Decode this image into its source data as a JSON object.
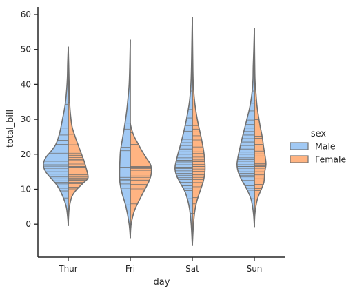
{
  "chart_data": {
    "type": "violin",
    "split": true,
    "inner": "stick",
    "xlabel": "day",
    "ylabel": "total_bill",
    "categories": [
      "Thur",
      "Fri",
      "Sat",
      "Sun"
    ],
    "ylim": [
      -9,
      63
    ],
    "yticks": [
      0,
      10,
      20,
      30,
      40,
      50,
      60
    ],
    "grid": false,
    "legend": {
      "title": "sex",
      "placement": "right",
      "entries": [
        {
          "label": "Male",
          "color": "#a1c9f4"
        },
        {
          "label": "Female",
          "color": "#ffb482"
        }
      ]
    },
    "outline_color": "#707070",
    "series": [
      {
        "name": "Male",
        "color": "#a1c9f4",
        "side": "left",
        "violins": [
          {
            "day": "Thur",
            "range": [
              -0.5,
              50.8
            ],
            "profile": [
              [
                -0.5,
                0
              ],
              [
                2,
                0.02
              ],
              [
                5,
                0.07
              ],
              [
                8,
                0.19
              ],
              [
                11,
                0.38
              ],
              [
                13,
                0.58
              ],
              [
                15,
                0.78
              ],
              [
                17,
                0.86
              ],
              [
                19,
                0.78
              ],
              [
                21,
                0.58
              ],
              [
                23,
                0.42
              ],
              [
                26,
                0.3
              ],
              [
                30,
                0.2
              ],
              [
                34,
                0.11
              ],
              [
                38,
                0.06
              ],
              [
                42,
                0.03
              ],
              [
                46,
                0.02
              ],
              [
                50.8,
                0
              ]
            ],
            "sticks": [
              7.5,
              9.5,
              10.3,
              11.5,
              12,
              12.4,
              13,
              13.5,
              14.3,
              15,
              15.5,
              16,
              16.6,
              17,
              17.5,
              18,
              19.5,
              20.3,
              22.8,
              24,
              25.5,
              27.5,
              32.7,
              34.3,
              41.2,
              43.1
            ]
          },
          {
            "day": "Fri",
            "range": [
              -4,
              52.8
            ],
            "profile": [
              [
                -4,
                0
              ],
              [
                0,
                0.04
              ],
              [
                5,
                0.15
              ],
              [
                9,
                0.29
              ],
              [
                12,
                0.36
              ],
              [
                15,
                0.37
              ],
              [
                18,
                0.36
              ],
              [
                21,
                0.34
              ],
              [
                24,
                0.28
              ],
              [
                28,
                0.2
              ],
              [
                32,
                0.13
              ],
              [
                36,
                0.08
              ],
              [
                40,
                0.04
              ],
              [
                45,
                0.02
              ],
              [
                52.8,
                0
              ]
            ],
            "sticks": [
              5.5,
              8.6,
              10.3,
              11.5,
              12.5,
              12.8,
              13.4,
              16.3,
              21,
              22,
              27.2,
              28.9,
              40.2
            ]
          },
          {
            "day": "Sat",
            "range": [
              -6.2,
              59.3
            ],
            "profile": [
              [
                -6.2,
                0
              ],
              [
                0,
                0.04
              ],
              [
                5,
                0.11
              ],
              [
                9,
                0.24
              ],
              [
                12,
                0.43
              ],
              [
                14,
                0.55
              ],
              [
                16,
                0.6
              ],
              [
                18,
                0.56
              ],
              [
                20,
                0.5
              ],
              [
                23,
                0.4
              ],
              [
                27,
                0.28
              ],
              [
                31,
                0.18
              ],
              [
                35,
                0.1
              ],
              [
                40,
                0.05
              ],
              [
                45,
                0.03
              ],
              [
                50,
                0.02
              ],
              [
                55,
                0.01
              ],
              [
                59.3,
                0
              ]
            ],
            "sticks": [
              3.1,
              7.3,
              9.6,
              10.3,
              11,
              12,
              12.8,
              13.3,
              14,
              14.5,
              15,
              15.4,
              15.9,
              16.3,
              17,
              17.8,
              18.3,
              19,
              20,
              20.7,
              21.5,
              22.5,
              23.3,
              24.3,
              25,
              26.6,
              28.2,
              30.4,
              32.8,
              38.1,
              44.3,
              48.3,
              50.8
            ]
          },
          {
            "day": "Sun",
            "range": [
              -0.8,
              56.2
            ],
            "profile": [
              [
                -0.8,
                0
              ],
              [
                3,
                0.03
              ],
              [
                7,
                0.11
              ],
              [
                10,
                0.26
              ],
              [
                13,
                0.46
              ],
              [
                15,
                0.56
              ],
              [
                17,
                0.6
              ],
              [
                19,
                0.57
              ],
              [
                21,
                0.52
              ],
              [
                24,
                0.44
              ],
              [
                27,
                0.35
              ],
              [
                30,
                0.26
              ],
              [
                33,
                0.17
              ],
              [
                37,
                0.09
              ],
              [
                41,
                0.05
              ],
              [
                45,
                0.04
              ],
              [
                50,
                0.02
              ],
              [
                56.2,
                0
              ]
            ],
            "sticks": [
              7.3,
              9.7,
              10.3,
              11,
              12.5,
              13.5,
              14,
              14.5,
              15,
              15.5,
              16,
              16.5,
              17,
              17.5,
              18,
              18.5,
              19,
              20,
              20.6,
              21.5,
              22.5,
              23.5,
              24.5,
              25.5,
              26.5,
              27.5,
              28.5,
              29.8,
              32.4,
              34.6,
              38.1,
              45.4
            ]
          }
        ]
      },
      {
        "name": "Female",
        "color": "#ffb482",
        "side": "right",
        "violins": [
          {
            "day": "Thur",
            "range": [
              -0.5,
              50.8
            ],
            "profile": [
              [
                -0.5,
                0
              ],
              [
                2,
                0.01
              ],
              [
                5,
                0.04
              ],
              [
                8,
                0.13
              ],
              [
                10,
                0.3
              ],
              [
                12,
                0.55
              ],
              [
                13,
                0.67
              ],
              [
                14,
                0.68
              ],
              [
                16,
                0.62
              ],
              [
                18,
                0.55
              ],
              [
                20,
                0.46
              ],
              [
                22,
                0.37
              ],
              [
                25,
                0.24
              ],
              [
                28,
                0.13
              ],
              [
                32,
                0.07
              ],
              [
                36,
                0.04
              ],
              [
                40,
                0.03
              ],
              [
                44,
                0.02
              ],
              [
                50.8,
                0
              ]
            ],
            "sticks": [
              8,
              9.8,
              10.1,
              10.6,
              11.2,
              11.6,
              12,
              12.5,
              12.7,
              13,
              13.2,
              13.5,
              14.1,
              15.5,
              16.3,
              16.5,
              17.2,
              18.2,
              18.5,
              19.1,
              19.7,
              20.3,
              22.7,
              25.7,
              30.1,
              32.7,
              34.8,
              43.1
            ]
          },
          {
            "day": "Fri",
            "range": [
              -4,
              28.8
            ],
            "profile": [
              [
                -4,
                0
              ],
              [
                0,
                0.03
              ],
              [
                4,
                0.15
              ],
              [
                8,
                0.38
              ],
              [
                11,
                0.57
              ],
              [
                13,
                0.68
              ],
              [
                15,
                0.73
              ],
              [
                17,
                0.7
              ],
              [
                19,
                0.55
              ],
              [
                21,
                0.4
              ],
              [
                23,
                0.27
              ],
              [
                25,
                0.14
              ],
              [
                27,
                0.05
              ],
              [
                28.8,
                0
              ]
            ],
            "sticks": [
              5.8,
              10.1,
              11.4,
              12.6,
              13.4,
              13.8,
              15.4,
              15.9,
              16.3,
              16.5,
              22.8,
              26.2
            ]
          },
          {
            "day": "Sat",
            "range": [
              -6.2,
              59.3
            ],
            "profile": [
              [
                -6.2,
                0
              ],
              [
                0,
                0.04
              ],
              [
                4,
                0.09
              ],
              [
                7,
                0.17
              ],
              [
                10,
                0.29
              ],
              [
                12,
                0.37
              ],
              [
                14,
                0.42
              ],
              [
                16,
                0.44
              ],
              [
                19,
                0.42
              ],
              [
                22,
                0.37
              ],
              [
                25,
                0.3
              ],
              [
                28,
                0.22
              ],
              [
                31,
                0.15
              ],
              [
                35,
                0.08
              ],
              [
                39,
                0.04
              ],
              [
                44,
                0.02
              ],
              [
                59.3,
                0
              ]
            ],
            "sticks": [
              3.1,
              5.8,
              7.6,
              9.8,
              10.7,
              11.9,
              12.8,
              13.4,
              14.1,
              15.1,
              15.8,
              16.5,
              17.1,
              17.9,
              18.4,
              19.2,
              20.2,
              20.7,
              22.1,
              24.1,
              25.3,
              26.4,
              27.2,
              28.2,
              30.1,
              35.8,
              44.3
            ]
          },
          {
            "day": "Sun",
            "range": [
              -0.8,
              56.2
            ],
            "profile": [
              [
                -0.8,
                0
              ],
              [
                3,
                0.02
              ],
              [
                7,
                0.1
              ],
              [
                10,
                0.24
              ],
              [
                12,
                0.33
              ],
              [
                15,
                0.36
              ],
              [
                17,
                0.4
              ],
              [
                19,
                0.38
              ],
              [
                22,
                0.32
              ],
              [
                25,
                0.27
              ],
              [
                28,
                0.2
              ],
              [
                31,
                0.14
              ],
              [
                34,
                0.09
              ],
              [
                37,
                0.06
              ],
              [
                42,
                0.02
              ],
              [
                56.2,
                0
              ]
            ],
            "sticks": [
              9.6,
              10.2,
              11.4,
              13,
              14.1,
              15,
              16,
              16.5,
              16.7,
              17,
              17.3,
              17.5,
              18.7,
              19.5,
              20.1,
              20.9,
              22.8,
              24.6,
              25.2,
              29.9,
              35.3
            ]
          }
        ]
      }
    ]
  }
}
